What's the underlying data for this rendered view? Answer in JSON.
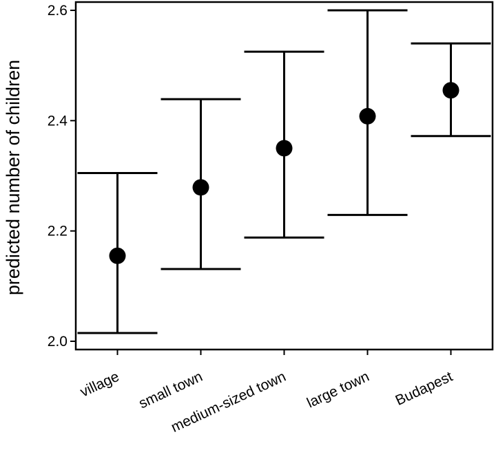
{
  "chart_data": {
    "type": "errorbar",
    "title": "",
    "xlabel": "",
    "ylabel": "predicted number of children",
    "ylim": [
      1.985,
      2.615
    ],
    "yticks": [
      2.0,
      2.2,
      2.4,
      2.6
    ],
    "ytick_labels": [
      "2.0",
      "2.2",
      "2.4",
      "2.6"
    ],
    "grid": false,
    "categories": [
      "village",
      "small town",
      "medium-sized town",
      "large town",
      "Budapest"
    ],
    "points": [
      {
        "label": "village",
        "value": 2.155,
        "lower": 2.015,
        "upper": 2.305
      },
      {
        "label": "small town",
        "value": 2.279,
        "lower": 2.131,
        "upper": 2.439
      },
      {
        "label": "medium-sized town",
        "value": 2.35,
        "lower": 2.188,
        "upper": 2.525
      },
      {
        "label": "large town",
        "value": 2.408,
        "lower": 2.229,
        "upper": 2.6
      },
      {
        "label": "Budapest",
        "value": 2.455,
        "lower": 2.372,
        "upper": 2.54
      }
    ],
    "colors": {
      "marker": "#000000",
      "axis": "#000000",
      "background": "#ffffff"
    }
  }
}
